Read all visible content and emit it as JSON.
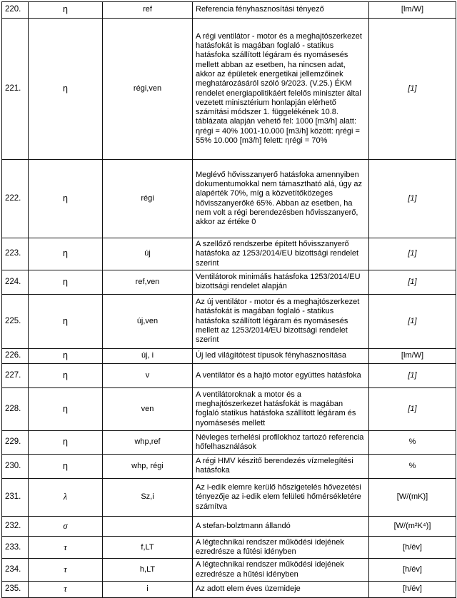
{
  "table": {
    "rows": [
      {
        "num": "220.",
        "symbol": "η",
        "symbol_italic": false,
        "sub": "ref",
        "desc": "Referencia fényhasznosítási tényező",
        "unit": "[lm/W]",
        "unit_italic": false
      },
      {
        "num": "221.",
        "symbol": "η",
        "symbol_italic": false,
        "sub": "régi,ven",
        "desc": "A régi ventilátor - motor és a meghajtószerkezet hatásfokát is magában foglaló - statikus hatásfoka szállított légáram és nyomásesés mellett abban az esetben, ha nincsen adat, akkor az épületek energetikai jellemzőinek meghatározásáról szóló 9/2023. (V.25.) ÉKM rendelet energiapolitikáért felelős miniszter által vezetett minisztérium honlapján elérhető számítási módszer 1. függelékének 10.8. táblázata alapján vehető fel: 1000 [m3/h] alatt: ηrégi = 40% 1001-10.000 [m3/h] között: ηrégi = 55% 10.000 [m3/h] felett: ηrégi = 70%",
        "unit": "[1]",
        "unit_italic": true
      },
      {
        "num": "222.",
        "symbol": "η",
        "symbol_italic": false,
        "sub": "régi",
        "desc": "Meglévő hővisszanyerő hatásfoka amennyiben dokumentumokkal nem támasztható alá, úgy az alapérték 70%, míg a közvetítőközeges hővisszanyerőké 65%. Abban az esetben, ha nem volt a régi berendezésben hővisszanyerő, akkor az értéke 0",
        "unit": "[1]",
        "unit_italic": true
      },
      {
        "num": "223.",
        "symbol": "η",
        "symbol_italic": false,
        "sub": "új",
        "desc": "A szellőző rendszerbe épített hővisszanyerő hatásfoka az 1253/2014/EU bizottsági rendelet szerint",
        "unit": "[1]",
        "unit_italic": true
      },
      {
        "num": "224.",
        "symbol": "η",
        "symbol_italic": false,
        "sub": "ref,ven",
        "desc": "Ventilátorok minimális hatásfoka 1253/2014/EU bizottsági rendelet alapján",
        "unit": "[1]",
        "unit_italic": true
      },
      {
        "num": "225.",
        "symbol": "η",
        "symbol_italic": false,
        "sub": "új,ven",
        "desc": "Az új ventilátor - motor és a meghajtószerkezet hatásfokát is magában foglaló - statikus hatásfoka szállított légáram és nyomásesés mellett az 1253/2014/EU bizottsági rendelet szerint",
        "unit": "[1]",
        "unit_italic": true
      },
      {
        "num": "226.",
        "symbol": "η",
        "symbol_italic": false,
        "sub": "új, i",
        "desc": "Új led világítótest típusok fényhasznosítása",
        "unit": "[lm/W]",
        "unit_italic": false
      },
      {
        "num": "227.",
        "symbol": "η",
        "symbol_italic": false,
        "sub": "v",
        "desc": "A ventilátor és a hajtó motor együttes hatásfoka",
        "unit": "[1]",
        "unit_italic": true
      },
      {
        "num": "228.",
        "symbol": "η",
        "symbol_italic": false,
        "sub": "ven",
        "desc": "A ventilátoroknak a motor és a meghajtószerkezet hatásfokát is magában foglaló statikus hatásfoka szállított légáram és nyomásesés mellett",
        "unit": "[1]",
        "unit_italic": true
      },
      {
        "num": "229.",
        "symbol": "η",
        "symbol_italic": false,
        "sub": "whp,ref",
        "desc": "Névleges terhelési profilokhoz tartozó referencia hőfelhasználások",
        "unit": "%",
        "unit_italic": false
      },
      {
        "num": "230.",
        "symbol": "η",
        "symbol_italic": false,
        "sub": "whp, régi",
        "desc": "A régi HMV készitő berendezés vízmelegítési hatásfoka",
        "unit": "%",
        "unit_italic": false
      },
      {
        "num": "231.",
        "symbol": "λ",
        "symbol_italic": true,
        "sub": "Sz,i",
        "desc": "Az i-edik elemre kerülő hőszigetelés hővezetési tényezője az i-edik elem felületi hőmérsékletére számítva",
        "unit": "[W/(mK)]",
        "unit_italic": false
      },
      {
        "num": "232.",
        "symbol": "σ",
        "symbol_italic": true,
        "sub": "",
        "desc": "A stefan-bolztmann állandó",
        "unit": "[W/(m²K⁴)]",
        "unit_italic": false
      },
      {
        "num": "233.",
        "symbol": "τ",
        "symbol_italic": true,
        "sub": "f,LT",
        "desc": "A légtechnikai rendszer működési idejének ezredrésze a fűtési idényben",
        "unit": "[h/év]",
        "unit_italic": false
      },
      {
        "num": "234.",
        "symbol": "τ",
        "symbol_italic": true,
        "sub": "h,LT",
        "desc": "A légtechnikai rendszer működési idejének ezredrésze a hűtési idényben",
        "unit": "[h/év]",
        "unit_italic": false
      },
      {
        "num": "235.",
        "symbol": "τ",
        "symbol_italic": true,
        "sub": "i",
        "desc": "Az adott elem éves üzemideje",
        "unit": "[h/év]",
        "unit_italic": false
      }
    ]
  }
}
